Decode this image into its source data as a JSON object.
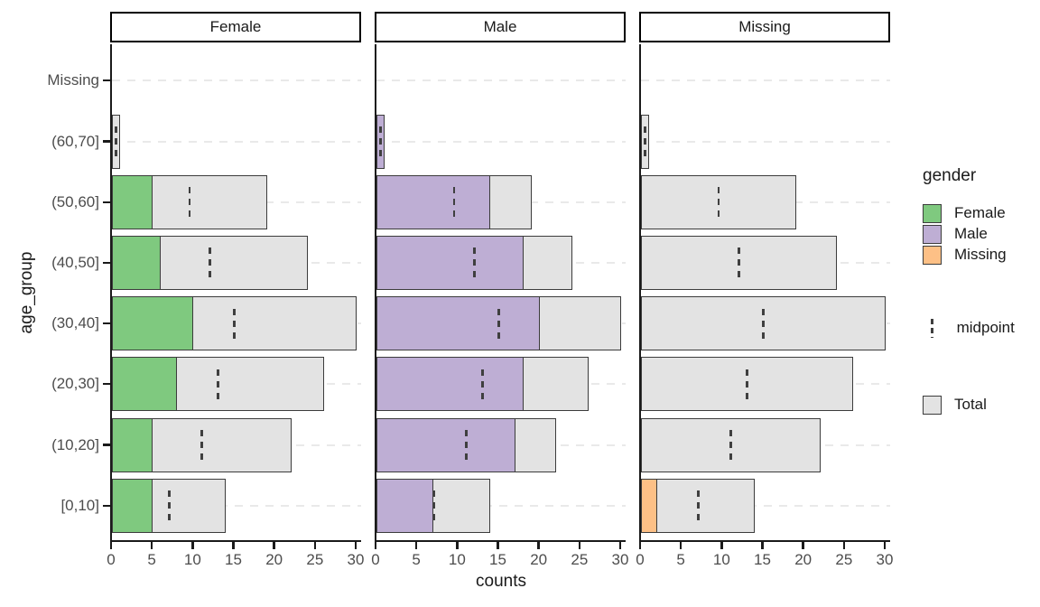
{
  "chart_data": {
    "type": "bar",
    "orientation": "horizontal",
    "facet_variable": "gender",
    "facets": [
      "Female",
      "Male",
      "Missing"
    ],
    "categories": [
      "Missing",
      "(60,70]",
      "(50,60]",
      "(40,50]",
      "(30,40]",
      "(20,30]",
      "(10,20]",
      "[0,10]"
    ],
    "xlabel": "counts",
    "ylabel": "age_group",
    "xlim": [
      0,
      30
    ],
    "xticks": [
      0,
      5,
      10,
      15,
      20,
      25,
      30
    ],
    "grid": "dashed-horizontal-major",
    "totals": [
      0,
      1,
      19,
      24,
      30,
      26,
      22,
      14
    ],
    "midpoints": [
      0,
      0.5,
      9.5,
      12,
      15,
      13,
      11,
      7
    ],
    "series": [
      {
        "name": "Female",
        "color": "#7fc97f",
        "values": [
          0,
          0,
          5,
          6,
          10,
          8,
          5,
          5
        ]
      },
      {
        "name": "Male",
        "color": "#beaed4",
        "values": [
          0,
          1,
          14,
          18,
          20,
          18,
          17,
          7
        ]
      },
      {
        "name": "Missing",
        "color": "#fdc086",
        "values": [
          0,
          0,
          0,
          0,
          0,
          0,
          0,
          2
        ]
      }
    ],
    "total_fill": "#e3e3e3",
    "bar_border": "#3c3c3c"
  },
  "legend": {
    "title": "gender",
    "items": [
      {
        "label": "Female",
        "color": "#7fc97f"
      },
      {
        "label": "Male",
        "color": "#beaed4"
      },
      {
        "label": "Missing",
        "color": "#fdc086"
      }
    ],
    "midpoint_label": "midpoint",
    "total_label": "Total",
    "total_fill": "#e3e3e3"
  }
}
